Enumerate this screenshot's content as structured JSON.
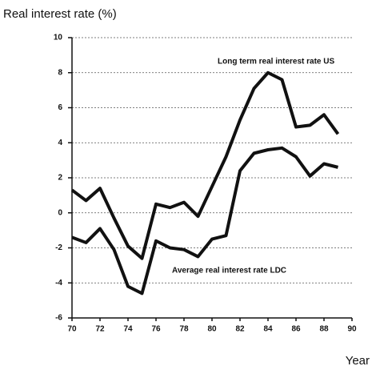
{
  "chart_data": {
    "type": "line",
    "y_axis_label": "Real interest rate (%)",
    "x_axis_label": "Year",
    "annotations": [
      "Long term real interest rate US",
      "Average real interest rate LDC"
    ],
    "x": [
      70,
      71,
      72,
      73,
      74,
      75,
      76,
      77,
      78,
      79,
      80,
      81,
      82,
      83,
      84,
      85,
      86,
      87,
      88,
      89
    ],
    "series": [
      {
        "color": "#111111",
        "values": [
          1.3,
          0.7,
          1.4,
          -0.3,
          -1.9,
          -2.6,
          0.5,
          0.3,
          0.6,
          -0.2,
          1.5,
          3.2,
          5.3,
          7.1,
          8.0,
          7.6,
          4.9,
          5.0,
          5.6,
          4.5
        ]
      },
      {
        "color": "#111111",
        "values": [
          -1.4,
          -1.7,
          -0.9,
          -2.1,
          -4.2,
          -4.6,
          -1.6,
          -2.0,
          -2.1,
          -2.5,
          -1.5,
          -1.3,
          2.4,
          3.4,
          3.6,
          3.7,
          3.2,
          2.1,
          2.8,
          2.6
        ]
      }
    ],
    "xlim": [
      70,
      90
    ],
    "xticks": [
      70,
      72,
      74,
      76,
      78,
      80,
      82,
      84,
      86,
      88,
      90
    ],
    "ylim": [
      -6,
      10
    ],
    "yticks": [
      -6,
      -4,
      -2,
      0,
      2,
      4,
      6,
      8,
      10
    ],
    "grid": true
  }
}
